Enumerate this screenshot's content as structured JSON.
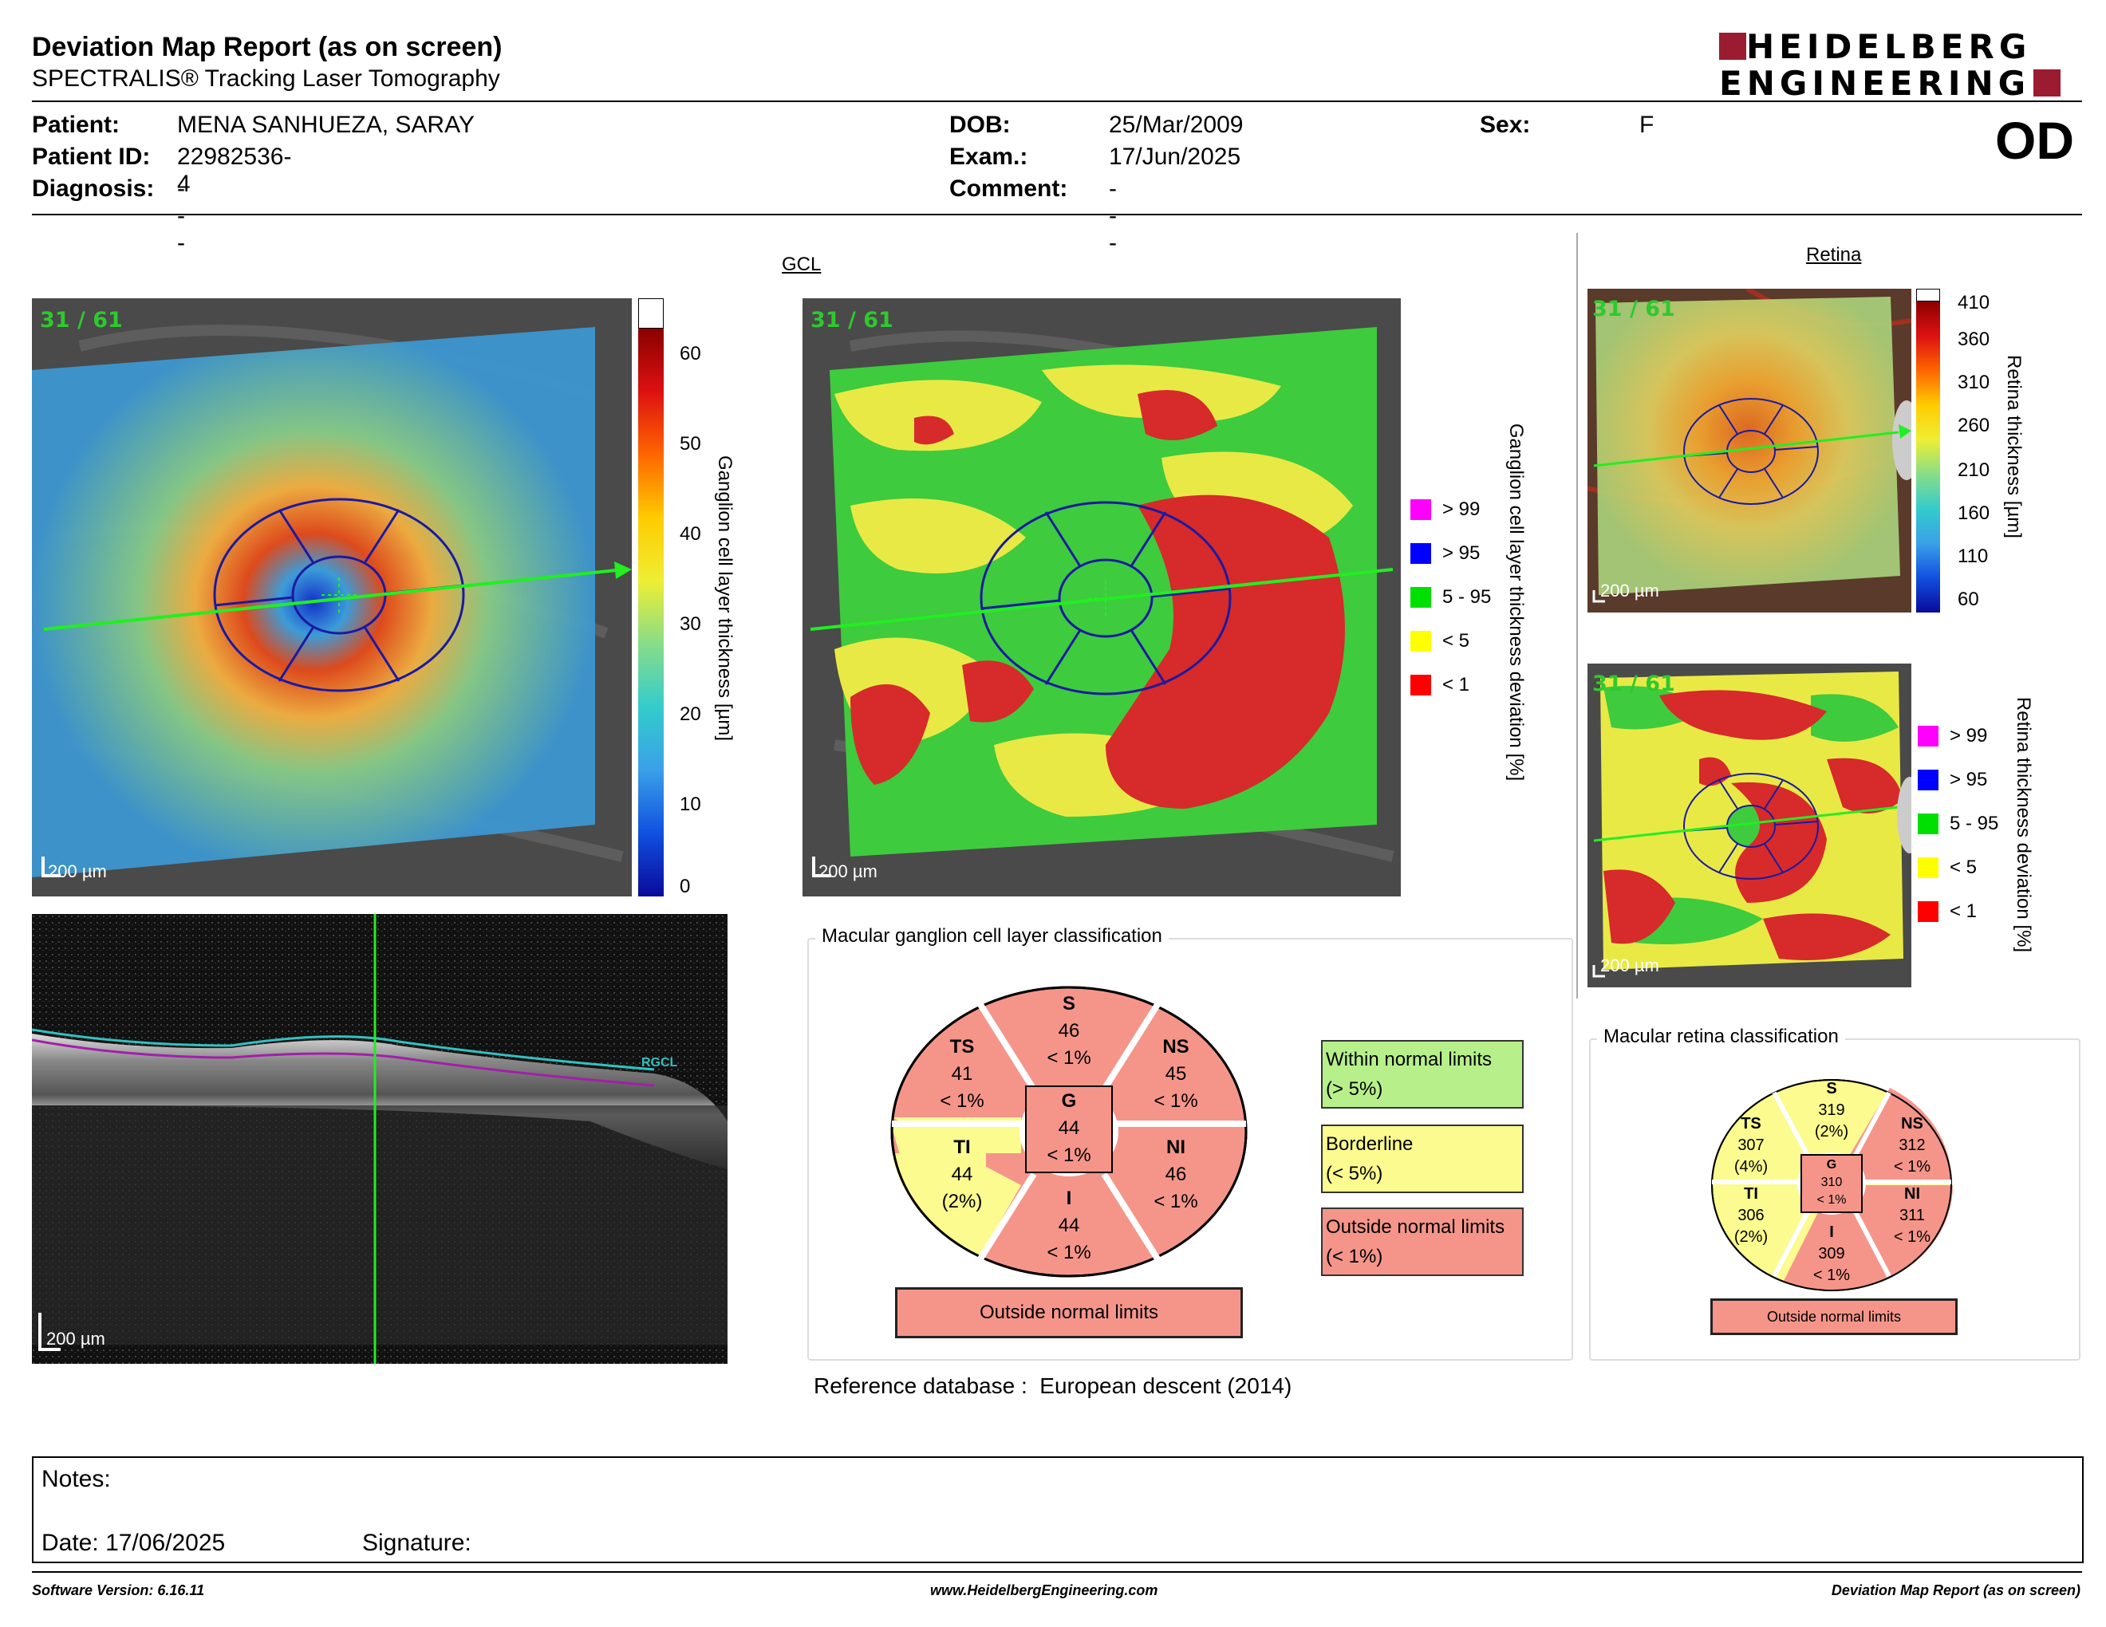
{
  "header": {
    "title": "Deviation Map Report (as on screen)",
    "subtitle": "SPECTRALIS® Tracking Laser Tomography",
    "logo_line1": "HEIDELBERG",
    "logo_line2": "ENGINEERING",
    "eye": "OD"
  },
  "patient": {
    "patient_label": "Patient:",
    "patient": "MENA SANHUEZA, SARAY",
    "id_label": "Patient ID:",
    "id": "22982536-4",
    "diagnosis_label": "Diagnosis:",
    "diagnosis": "---",
    "dob_label": "DOB:",
    "dob": "25/Mar/2009",
    "exam_label": "Exam.:",
    "exam": "17/Jun/2025",
    "comment_label": "Comment:",
    "comment": "---",
    "sex_label": "Sex:",
    "sex": "F"
  },
  "gcl": {
    "section_title": "GCL",
    "frame_label": "31 / 61",
    "scale_label": "200 µm",
    "thickness_axis_label": "Ganglion cell layer thickness [µm]",
    "thickness_ticks": [
      "60",
      "50",
      "40",
      "30",
      "20",
      "10",
      "0"
    ],
    "deviation_axis_label": "Ganglion cell layer thickness deviation [%]",
    "legend": [
      {
        "label": "> 99",
        "color": "#ff00ff"
      },
      {
        "label": "> 95",
        "color": "#0000ff"
      },
      {
        "label": "5 - 95",
        "color": "#00e000"
      },
      {
        "label": "< 5",
        "color": "#ffff00"
      },
      {
        "label": "< 1",
        "color": "#ff0000"
      }
    ],
    "bscan_scale_label": "200 µm",
    "bscan_layer_label": "RGCL",
    "classification_title": "Macular ganglion cell layer classification",
    "sectors": {
      "S": {
        "name": "S",
        "value": "46",
        "pct": "< 1%"
      },
      "TS": {
        "name": "TS",
        "value": "41",
        "pct": "< 1%"
      },
      "NS": {
        "name": "NS",
        "value": "45",
        "pct": "< 1%"
      },
      "G": {
        "name": "G",
        "value": "44",
        "pct": "< 1%"
      },
      "TI": {
        "name": "TI",
        "value": "44",
        "pct": "(2%)"
      },
      "NI": {
        "name": "NI",
        "value": "46",
        "pct": "< 1%"
      },
      "I": {
        "name": "I",
        "value": "44",
        "pct": "< 1%"
      }
    },
    "result": "Outside normal limits",
    "key": [
      {
        "line1": "Within normal limits",
        "line2": "(> 5%)",
        "color": "#b7f08a"
      },
      {
        "line1": "Borderline",
        "line2": "(< 5%)",
        "color": "#fbfb8f"
      },
      {
        "line1": "Outside normal limits",
        "line2": "(< 1%)",
        "color": "#f5958a"
      }
    ],
    "reference": "Reference database :  European descent (2014)"
  },
  "retina": {
    "section_title": "Retina",
    "frame_label": "31 / 61",
    "scale_label": "200 µm",
    "thickness_axis_label": "Retina thickness [µm]",
    "thickness_ticks": [
      "410",
      "360",
      "310",
      "260",
      "210",
      "160",
      "110",
      "60"
    ],
    "deviation_axis_label": "Retina thickness deviation [%]",
    "legend": [
      {
        "label": "> 99",
        "color": "#ff00ff"
      },
      {
        "label": "> 95",
        "color": "#0000ff"
      },
      {
        "label": "5 - 95",
        "color": "#00e000"
      },
      {
        "label": "< 5",
        "color": "#ffff00"
      },
      {
        "label": "< 1",
        "color": "#ff0000"
      }
    ],
    "classification_title": "Macular retina classification",
    "sectors": {
      "S": {
        "name": "S",
        "value": "319",
        "pct": "(2%)"
      },
      "TS": {
        "name": "TS",
        "value": "307",
        "pct": "(4%)"
      },
      "NS": {
        "name": "NS",
        "value": "312",
        "pct": "< 1%"
      },
      "G": {
        "name": "G",
        "value": "310",
        "pct": "< 1%"
      },
      "TI": {
        "name": "TI",
        "value": "306",
        "pct": "(2%)"
      },
      "NI": {
        "name": "NI",
        "value": "311",
        "pct": "< 1%"
      },
      "I": {
        "name": "I",
        "value": "309",
        "pct": "< 1%"
      }
    },
    "result": "Outside normal limits"
  },
  "notes": {
    "notes_label": "Notes:",
    "date_label": "Date:",
    "date": "17/06/2025",
    "signature_label": "Signature:"
  },
  "footer": {
    "software": "Software Version: 6.16.11",
    "website": "www.HeidelbergEngineering.com",
    "report": "Deviation Map Report (as on screen)"
  },
  "colors": {
    "brand": "#9b1b30",
    "outside": "#f5958a",
    "borderline": "#fbfb8f",
    "within": "#b7f08a",
    "scan_line": "#22ee22",
    "grid_line": "#1a1aa0"
  }
}
